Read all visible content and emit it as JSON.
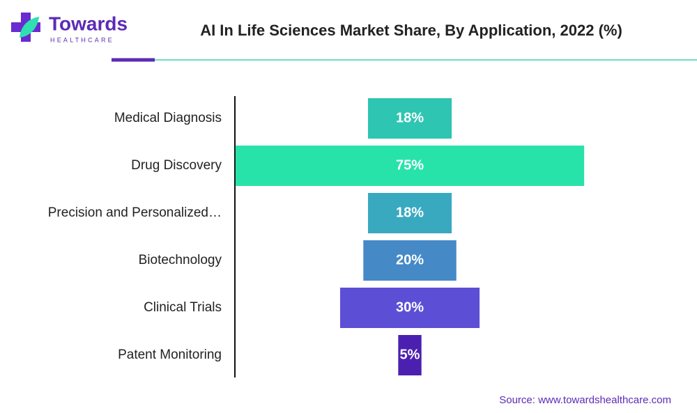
{
  "logo": {
    "name": "Towards",
    "tagline": "HEALTHCARE"
  },
  "chart_data": {
    "type": "funnel",
    "title": "AI In Life Sciences Market Share, By Application, 2022 (%)",
    "categories": [
      "Medical Diagnosis",
      "Drug Discovery",
      "Precision and Personalized…",
      "Biotechnology",
      "Clinical Trials",
      "Patent Monitoring"
    ],
    "values": [
      18,
      75,
      18,
      20,
      30,
      5
    ],
    "value_labels": [
      "18%",
      "75%",
      "18%",
      "20%",
      "30%",
      "5%"
    ],
    "colors": [
      "#2ec5b2",
      "#27e3aa",
      "#39a9c0",
      "#4589c7",
      "#5c4fd5",
      "#4b20b0"
    ]
  },
  "source": "Source: www.towardshealthcare.com"
}
